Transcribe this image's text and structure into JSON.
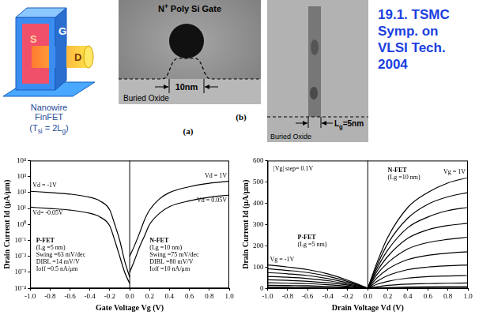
{
  "header": {
    "lines": [
      "19.1. TSMC",
      "Symp. on",
      "VLSI Tech.",
      "2004"
    ]
  },
  "schematic": {
    "gate": "G",
    "source": "S",
    "drain": "D",
    "caption": [
      "Nanowire",
      "FinFET"
    ],
    "formula": [
      {
        "t": "(T"
      },
      {
        "t": "si",
        "sub": true
      },
      {
        "t": " = 2L"
      },
      {
        "t": "g",
        "sub": true
      },
      {
        "t": ")"
      }
    ]
  },
  "tem": [
    {
      "gate_label": [
        {
          "t": "N"
        },
        {
          "t": "+",
          "sup": true
        },
        {
          "t": " Poly Si Gate"
        }
      ],
      "dimension": [
        {
          "t": "10nm"
        }
      ],
      "substrate": "Buried Oxide",
      "panel": "(a)"
    },
    {
      "dimension": [
        {
          "t": "L"
        },
        {
          "t": "g",
          "sub": true
        },
        {
          "t": "=5nm"
        }
      ],
      "substrate": "Buried Oxide",
      "panel": "(b)"
    }
  ],
  "chart_data": [
    {
      "type": "line",
      "x_label": "Gate Voltage Vg (V)",
      "y_label": "Drain Current Id (μA/μm)",
      "log": "y",
      "grid": false,
      "xlim": [
        -1,
        1
      ],
      "xticks": [
        {
          "value": -1,
          "label": "-1.0"
        },
        -0.8,
        -0.6,
        -0.4,
        -0.2,
        {
          "value": 0,
          "label": "0.0"
        },
        0.2,
        0.4,
        0.6,
        0.8,
        {
          "value": 1,
          "label": "1.0"
        }
      ],
      "ylim": [
        0.0001,
        10000
      ],
      "yticks": [
        {
          "value": 0.0001,
          "label": "10⁻⁴"
        },
        {
          "value": 0.001,
          "label": "10⁻³"
        },
        {
          "value": 0.01,
          "label": "10⁻²"
        },
        {
          "value": 0.1,
          "label": "10⁻¹"
        },
        {
          "value": 1,
          "label": "10⁰"
        },
        {
          "value": 10,
          "label": "10¹"
        },
        {
          "value": 100,
          "label": "10²"
        },
        {
          "value": 1000,
          "label": "10³"
        },
        {
          "value": 10000,
          "label": "10⁴"
        }
      ],
      "series": [
        {
          "name": "Vd = -1V",
          "color": "#000000",
          "x": [
            -1,
            -0.8,
            -0.6,
            -0.4,
            -0.3,
            -0.2,
            -0.15,
            -0.1,
            -0.05,
            0
          ],
          "values": [
            120,
            100,
            80,
            50,
            30,
            8,
            1,
            0.1,
            0.005,
            0.0005
          ]
        },
        {
          "name": "Vd= -0.05V",
          "color": "#000000",
          "x": [
            -1,
            -0.8,
            -0.6,
            -0.4,
            -0.3,
            -0.2,
            -0.15,
            -0.1,
            -0.05,
            0
          ],
          "values": [
            12,
            10,
            8,
            5,
            3,
            0.8,
            0.1,
            0.01,
            0.001,
            0.0002
          ]
        },
        {
          "name": "Vd = 1V",
          "color": "#000000",
          "x": [
            0,
            0.05,
            0.1,
            0.15,
            0.2,
            0.3,
            0.4,
            0.6,
            0.8,
            1
          ],
          "values": [
            0.01,
            0.05,
            0.3,
            2,
            8,
            40,
            100,
            230,
            380,
            500
          ]
        },
        {
          "name": "Vd = 0.05V",
          "color": "#000000",
          "x": [
            0,
            0.05,
            0.1,
            0.15,
            0.2,
            0.3,
            0.4,
            0.6,
            0.8,
            1
          ],
          "values": [
            0.001,
            0.006,
            0.04,
            0.2,
            1,
            5,
            13,
            30,
            50,
            70
          ]
        }
      ],
      "annotations": [
        {
          "lines": [
            "P-FET",
            "(Lg =5 nm)",
            "Swing =63 mV/dec",
            "DIBL =14 mV/V",
            "Ioff =0.5 nA/μm"
          ]
        },
        {
          "lines": [
            "N-FET",
            "(Lg =10 nm)",
            "Swing =75 mV/dec",
            "DIBL =80 mV/V",
            "Ioff =10 nA/μm"
          ]
        }
      ]
    },
    {
      "type": "line",
      "x_label": "Drain Voltage Vd (V)",
      "y_label": "Drain Current Id (μA/μm)",
      "grid": false,
      "xlim": [
        -1,
        1
      ],
      "xticks": [
        {
          "value": -1,
          "label": "-1.0"
        },
        -0.8,
        -0.6,
        -0.4,
        -0.2,
        {
          "value": 0,
          "label": "0.0"
        },
        0.2,
        0.4,
        0.6,
        0.8,
        {
          "value": 1,
          "label": "1.0"
        }
      ],
      "ylim": [
        0,
        600
      ],
      "yticks": [
        0,
        100,
        200,
        300,
        400,
        500,
        600
      ],
      "series": [
        {
          "name": "Vg = 1V",
          "color": "#000000",
          "x": [
            0,
            0.1,
            0.2,
            0.4,
            0.6,
            0.8,
            1
          ],
          "values": [
            0,
            130,
            240,
            380,
            450,
            495,
            520
          ]
        },
        {
          "color": "#000000",
          "x": [
            0,
            0.1,
            0.2,
            0.4,
            0.6,
            0.8,
            1
          ],
          "values": [
            0,
            115,
            210,
            330,
            395,
            430,
            450
          ]
        },
        {
          "color": "#000000",
          "x": [
            0,
            0.1,
            0.2,
            0.4,
            0.6,
            0.8,
            1
          ],
          "values": [
            0,
            100,
            180,
            285,
            335,
            365,
            380
          ]
        },
        {
          "color": "#000000",
          "x": [
            0,
            0.1,
            0.2,
            0.4,
            0.6,
            0.8,
            1
          ],
          "values": [
            0,
            85,
            150,
            235,
            275,
            295,
            305
          ]
        },
        {
          "color": "#000000",
          "x": [
            0,
            0.1,
            0.2,
            0.4,
            0.6,
            0.8,
            1
          ],
          "values": [
            0,
            70,
            120,
            185,
            215,
            230,
            240
          ]
        },
        {
          "color": "#000000",
          "x": [
            0,
            0.1,
            0.2,
            0.4,
            0.6,
            0.8,
            1
          ],
          "values": [
            0,
            52,
            90,
            135,
            155,
            165,
            172
          ]
        },
        {
          "color": "#000000",
          "x": [
            0,
            0.1,
            0.2,
            0.4,
            0.6,
            0.8,
            1
          ],
          "values": [
            0,
            35,
            60,
            88,
            100,
            106,
            110
          ]
        },
        {
          "color": "#000000",
          "x": [
            0,
            0.1,
            0.2,
            0.4,
            0.6,
            0.8,
            1
          ],
          "values": [
            0,
            20,
            33,
            48,
            55,
            58,
            60
          ]
        },
        {
          "color": "#000000",
          "x": [
            0,
            0.1,
            0.2,
            0.4,
            0.6,
            0.8,
            1
          ],
          "values": [
            0,
            8,
            14,
            20,
            22,
            24,
            25
          ]
        },
        {
          "color": "#000000",
          "x": [
            0,
            0.1,
            0.2,
            0.4,
            0.6,
            0.8,
            1
          ],
          "values": [
            0,
            2,
            4,
            6,
            7,
            7.5,
            8
          ]
        },
        {
          "name": "Vg = -1V",
          "color": "#000000",
          "x": [
            -1,
            -0.8,
            -0.6,
            -0.4,
            -0.2,
            -0.1,
            0
          ],
          "values": [
            110,
            100,
            88,
            68,
            38,
            20,
            0
          ]
        },
        {
          "color": "#000000",
          "x": [
            -1,
            -0.8,
            -0.6,
            -0.4,
            -0.2,
            -0.1,
            0
          ],
          "values": [
            92,
            84,
            74,
            57,
            32,
            17,
            0
          ]
        },
        {
          "color": "#000000",
          "x": [
            -1,
            -0.8,
            -0.6,
            -0.4,
            -0.2,
            -0.1,
            0
          ],
          "values": [
            74,
            68,
            60,
            46,
            26,
            14,
            0
          ]
        },
        {
          "color": "#000000",
          "x": [
            -1,
            -0.8,
            -0.6,
            -0.4,
            -0.2,
            -0.1,
            0
          ],
          "values": [
            56,
            52,
            46,
            36,
            20,
            11,
            0
          ]
        },
        {
          "color": "#000000",
          "x": [
            -1,
            -0.8,
            -0.6,
            -0.4,
            -0.2,
            -0.1,
            0
          ],
          "values": [
            40,
            37,
            33,
            26,
            15,
            8,
            0
          ]
        },
        {
          "color": "#000000",
          "x": [
            -1,
            -0.8,
            -0.6,
            -0.4,
            -0.2,
            -0.1,
            0
          ],
          "values": [
            26,
            24,
            22,
            17,
            10,
            5,
            0
          ]
        },
        {
          "color": "#000000",
          "x": [
            -1,
            -0.8,
            -0.6,
            -0.4,
            -0.2,
            -0.1,
            0
          ],
          "values": [
            14,
            13,
            12,
            9,
            6,
            3,
            0
          ]
        },
        {
          "color": "#000000",
          "x": [
            -1,
            -0.8,
            -0.6,
            -0.4,
            -0.2,
            -0.1,
            0
          ],
          "values": [
            6,
            5.5,
            5,
            4,
            2.5,
            1.5,
            0
          ]
        }
      ],
      "annotations": [
        {
          "lines": [
            "|Vg| step= 0.1V"
          ]
        },
        {
          "lines": [
            "N-FET",
            "(Lg =10 nm)"
          ]
        },
        {
          "lines": [
            "P-FET",
            "(Lg =5 nm)"
          ]
        }
      ]
    }
  ]
}
